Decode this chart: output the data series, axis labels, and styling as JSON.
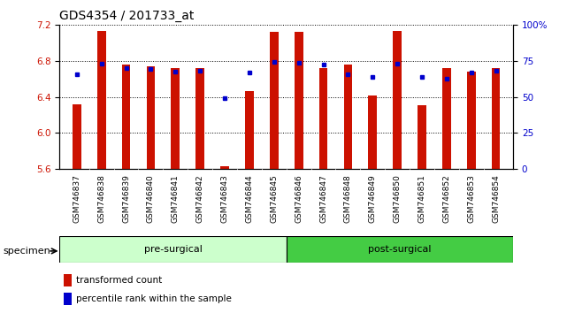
{
  "title": "GDS4354 / 201733_at",
  "samples": [
    "GSM746837",
    "GSM746838",
    "GSM746839",
    "GSM746840",
    "GSM746841",
    "GSM746842",
    "GSM746843",
    "GSM746844",
    "GSM746845",
    "GSM746846",
    "GSM746847",
    "GSM746848",
    "GSM746849",
    "GSM746850",
    "GSM746851",
    "GSM746852",
    "GSM746853",
    "GSM746854"
  ],
  "bar_values": [
    6.32,
    7.13,
    6.76,
    6.74,
    6.72,
    6.72,
    5.63,
    6.47,
    7.12,
    7.12,
    6.72,
    6.76,
    6.42,
    7.13,
    6.31,
    6.72,
    6.68,
    6.72
  ],
  "percentile_values": [
    6.65,
    6.77,
    6.72,
    6.71,
    6.68,
    6.69,
    6.39,
    6.67,
    6.79,
    6.78,
    6.76,
    6.65,
    6.62,
    6.77,
    6.62,
    6.6,
    6.67,
    6.69
  ],
  "ymin": 5.6,
  "ymax": 7.2,
  "yticks": [
    5.6,
    6.0,
    6.4,
    6.8,
    7.2
  ],
  "right_yticks": [
    0,
    25,
    50,
    75,
    100
  ],
  "bar_color": "#cc1100",
  "percentile_color": "#0000cc",
  "pre_surgical_count": 9,
  "post_surgical_count": 9,
  "pre_surgical_label": "pre-surgical",
  "post_surgical_label": "post-surgical",
  "pre_surgical_color": "#ccffcc",
  "post_surgical_color": "#44cc44",
  "specimen_label": "specimen",
  "legend_bar_label": "transformed count",
  "legend_pct_label": "percentile rank within the sample",
  "bar_width": 0.35,
  "grid_color": "#000000",
  "background_color": "#ffffff",
  "plot_bg_color": "#ffffff",
  "xtick_bg_color": "#c8c8c8",
  "tick_label_color_left": "#cc1100",
  "tick_label_color_right": "#0000cc",
  "title_fontsize": 10,
  "tick_fontsize": 7.5,
  "xlabel_fontsize": 6.5,
  "legend_fontsize": 7.5,
  "group_fontsize": 8
}
